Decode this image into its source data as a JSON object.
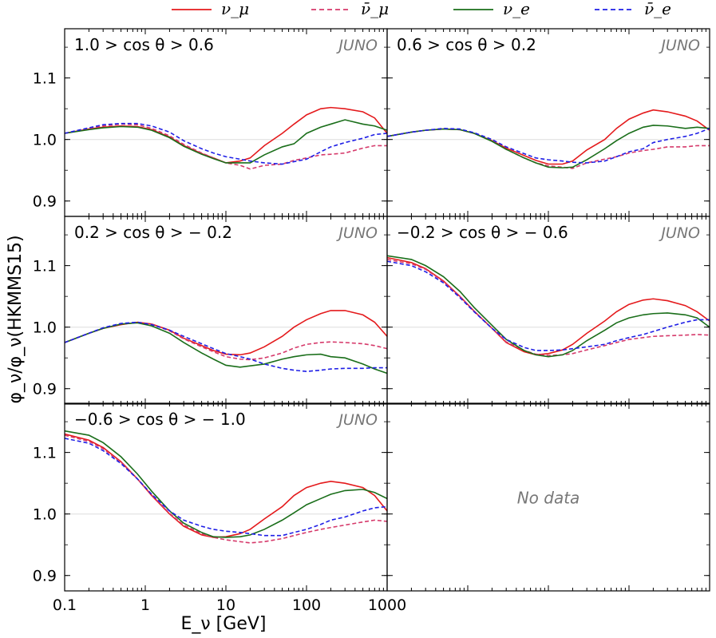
{
  "chart_data": {
    "type": "line",
    "xscale": "log",
    "xlim": [
      0.1,
      1000
    ],
    "ylim": [
      0.875,
      1.18
    ],
    "xlabel": "E_ν [GeV]",
    "ylabel": "φ_ν/φ_ν(HKMMS15)",
    "x_tick_labels": [
      "0.1",
      "1",
      "10",
      "100",
      "1000"
    ],
    "y_tick_labels": [
      "0.9",
      "1.0",
      "1.1"
    ],
    "legend": {
      "position": "top-center",
      "entries": [
        {
          "label": "ν_μ",
          "color": "#e41a1c",
          "dash": "solid"
        },
        {
          "label": "ν̄_μ",
          "color": "#d63a6b",
          "dash": "dashed"
        },
        {
          "label": "ν_e",
          "color": "#1a6e1a",
          "dash": "solid"
        },
        {
          "label": "ν̄_e",
          "color": "#1f1fe6",
          "dash": "dashed"
        }
      ]
    },
    "experiment_label": "JUNO",
    "no_data_text": "No data",
    "energies": [
      0.1,
      0.2,
      0.3,
      0.5,
      0.8,
      1.2,
      2,
      3,
      5,
      7,
      10,
      15,
      20,
      30,
      50,
      70,
      100,
      150,
      200,
      300,
      500,
      700,
      1000
    ],
    "panels": [
      {
        "label": "1.0 > cos θ > 0.6",
        "series": {
          "numu": [
            1.01,
            1.017,
            1.02,
            1.022,
            1.021,
            1.016,
            1.004,
            0.99,
            0.977,
            0.97,
            0.962,
            0.965,
            0.97,
            0.99,
            1.01,
            1.025,
            1.04,
            1.05,
            1.052,
            1.05,
            1.045,
            1.035,
            1.01
          ],
          "numubar": [
            1.01,
            1.018,
            1.022,
            1.025,
            1.024,
            1.018,
            1.006,
            0.992,
            0.978,
            0.97,
            0.962,
            0.958,
            0.952,
            0.958,
            0.96,
            0.966,
            0.97,
            0.975,
            0.976,
            0.978,
            0.986,
            0.99,
            0.99
          ],
          "nue": [
            1.01,
            1.016,
            1.019,
            1.021,
            1.02,
            1.015,
            1.003,
            0.989,
            0.976,
            0.969,
            0.962,
            0.962,
            0.962,
            0.975,
            0.988,
            0.993,
            1.01,
            1.02,
            1.025,
            1.032,
            1.025,
            1.022,
            1.015
          ],
          "nuebar": [
            1.01,
            1.019,
            1.024,
            1.026,
            1.026,
            1.022,
            1.012,
            0.998,
            0.985,
            0.978,
            0.972,
            0.968,
            0.965,
            0.962,
            0.96,
            0.964,
            0.968,
            0.98,
            0.988,
            0.995,
            1.002,
            1.008,
            1.01
          ]
        }
      },
      {
        "label": "0.6 > cos θ > 0.2",
        "series": {
          "numu": [
            1.005,
            1.012,
            1.015,
            1.017,
            1.016,
            1.01,
            0.998,
            0.986,
            0.974,
            0.966,
            0.96,
            0.96,
            0.965,
            0.983,
            1.0,
            1.018,
            1.033,
            1.043,
            1.048,
            1.045,
            1.038,
            1.03,
            1.015
          ],
          "numubar": [
            1.005,
            1.012,
            1.015,
            1.017,
            1.016,
            1.01,
            0.998,
            0.984,
            0.97,
            0.962,
            0.957,
            0.955,
            0.953,
            0.962,
            0.968,
            0.972,
            0.978,
            0.982,
            0.984,
            0.988,
            0.988,
            0.99,
            0.99
          ],
          "nue": [
            1.005,
            1.012,
            1.015,
            1.017,
            1.016,
            1.01,
            0.997,
            0.984,
            0.97,
            0.962,
            0.955,
            0.954,
            0.955,
            0.967,
            0.985,
            0.998,
            1.01,
            1.02,
            1.023,
            1.022,
            1.018,
            1.02,
            1.018
          ],
          "nuebar": [
            1.005,
            1.012,
            1.015,
            1.018,
            1.017,
            1.011,
            1.0,
            0.988,
            0.977,
            0.97,
            0.967,
            0.965,
            0.963,
            0.962,
            0.965,
            0.972,
            0.98,
            0.985,
            0.995,
            1.0,
            1.005,
            1.01,
            1.018
          ]
        }
      },
      {
        "label": "0.2 > cos θ > − 0.2",
        "series": {
          "numu": [
            0.975,
            0.99,
            0.998,
            1.004,
            1.008,
            1.005,
            0.995,
            0.982,
            0.97,
            0.962,
            0.956,
            0.955,
            0.958,
            0.968,
            0.985,
            1.0,
            1.012,
            1.022,
            1.027,
            1.027,
            1.02,
            1.008,
            0.985
          ],
          "numubar": [
            0.975,
            0.99,
            0.998,
            1.005,
            1.008,
            1.005,
            0.994,
            0.981,
            0.968,
            0.96,
            0.952,
            0.948,
            0.947,
            0.95,
            0.958,
            0.966,
            0.972,
            0.975,
            0.976,
            0.975,
            0.973,
            0.97,
            0.965
          ],
          "nue": [
            0.975,
            0.99,
            0.998,
            1.005,
            1.007,
            1.002,
            0.99,
            0.975,
            0.958,
            0.948,
            0.938,
            0.935,
            0.937,
            0.94,
            0.948,
            0.952,
            0.955,
            0.956,
            0.952,
            0.95,
            0.94,
            0.932,
            0.925
          ],
          "nuebar": [
            0.975,
            0.99,
            0.999,
            1.006,
            1.008,
            1.004,
            0.995,
            0.985,
            0.973,
            0.965,
            0.957,
            0.952,
            0.948,
            0.94,
            0.933,
            0.93,
            0.928,
            0.93,
            0.932,
            0.933,
            0.933,
            0.934,
            0.934
          ]
        }
      },
      {
        "label": "−0.2 > cos θ > − 0.6",
        "series": {
          "numu": [
            1.113,
            1.105,
            1.095,
            1.075,
            1.05,
            1.026,
            0.998,
            0.975,
            0.96,
            0.955,
            0.957,
            0.963,
            0.972,
            0.99,
            1.01,
            1.025,
            1.037,
            1.044,
            1.046,
            1.043,
            1.035,
            1.025,
            1.01
          ],
          "numubar": [
            1.11,
            1.103,
            1.094,
            1.074,
            1.05,
            1.026,
            0.998,
            0.976,
            0.962,
            0.956,
            0.954,
            0.955,
            0.957,
            0.963,
            0.97,
            0.975,
            0.98,
            0.983,
            0.985,
            0.986,
            0.987,
            0.988,
            0.987
          ],
          "nue": [
            1.116,
            1.11,
            1.1,
            1.082,
            1.058,
            1.032,
            1.003,
            0.98,
            0.962,
            0.955,
            0.952,
            0.955,
            0.962,
            0.978,
            0.995,
            1.007,
            1.015,
            1.02,
            1.022,
            1.023,
            1.02,
            1.015,
            1.0
          ],
          "nuebar": [
            1.107,
            1.1,
            1.09,
            1.072,
            1.048,
            1.025,
            0.998,
            0.98,
            0.967,
            0.962,
            0.962,
            0.963,
            0.965,
            0.968,
            0.972,
            0.978,
            0.983,
            0.988,
            0.993,
            1.0,
            1.008,
            1.012,
            1.012
          ]
        }
      },
      {
        "label": "−0.6 > cos θ > − 1.0",
        "series": {
          "numu": [
            1.13,
            1.12,
            1.108,
            1.085,
            1.057,
            1.03,
            1.0,
            0.98,
            0.966,
            0.962,
            0.963,
            0.968,
            0.975,
            0.992,
            1.012,
            1.03,
            1.043,
            1.05,
            1.053,
            1.05,
            1.043,
            1.03,
            1.005
          ],
          "numubar": [
            1.128,
            1.118,
            1.106,
            1.084,
            1.057,
            1.031,
            1.001,
            0.982,
            0.968,
            0.962,
            0.958,
            0.955,
            0.953,
            0.955,
            0.96,
            0.965,
            0.97,
            0.975,
            0.978,
            0.982,
            0.987,
            0.99,
            0.988
          ],
          "nue": [
            1.135,
            1.128,
            1.116,
            1.093,
            1.065,
            1.037,
            1.005,
            0.985,
            0.97,
            0.963,
            0.962,
            0.963,
            0.966,
            0.975,
            0.99,
            1.002,
            1.015,
            1.025,
            1.032,
            1.038,
            1.04,
            1.035,
            1.025
          ],
          "nuebar": [
            1.123,
            1.115,
            1.103,
            1.082,
            1.057,
            1.032,
            1.005,
            0.99,
            0.98,
            0.975,
            0.972,
            0.97,
            0.968,
            0.965,
            0.965,
            0.97,
            0.975,
            0.983,
            0.99,
            0.995,
            1.005,
            1.01,
            1.012
          ]
        }
      }
    ]
  }
}
